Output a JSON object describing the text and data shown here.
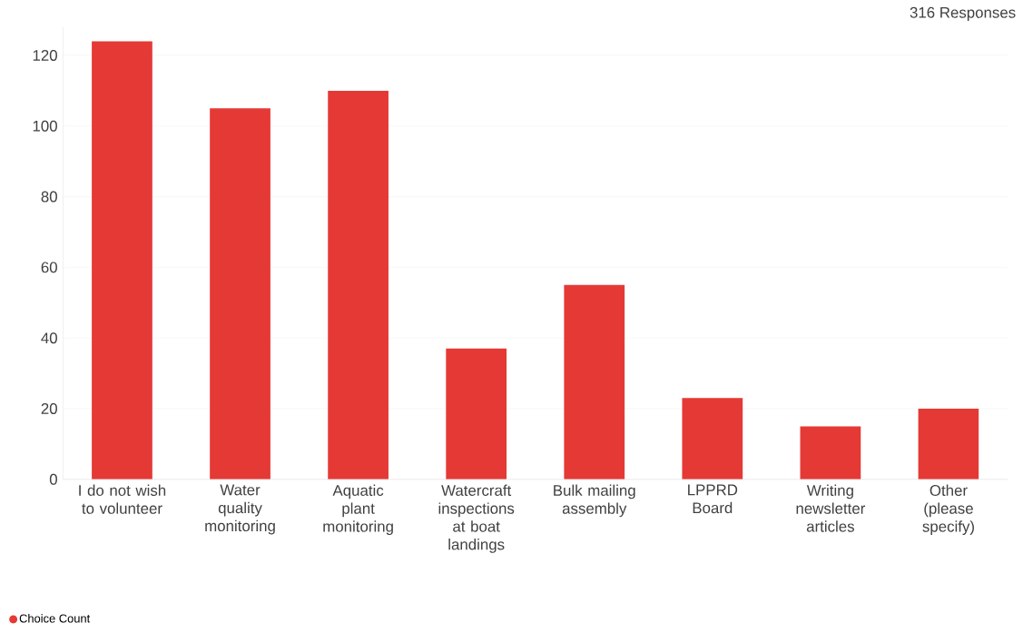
{
  "chart_data": {
    "type": "bar",
    "categories": [
      "I do not wish to volunteer",
      "Water quality monitoring",
      "Aquatic plant monitoring",
      "Watercraft inspections at boat landings",
      "Bulk mailing assembly",
      "LPPRD Board",
      "Writing newsletter articles",
      "Other (please specify)"
    ],
    "series": [
      {
        "name": "Choice Count",
        "color": "#e53935",
        "values": [
          124,
          105,
          110,
          37,
          55,
          23,
          15,
          20
        ]
      }
    ],
    "ylim": [
      0,
      128
    ],
    "yticks": [
      0,
      20,
      40,
      60,
      80,
      100,
      120
    ],
    "grid": "y",
    "legend": "bottom left",
    "annotations": [
      "316 Responses"
    ]
  }
}
